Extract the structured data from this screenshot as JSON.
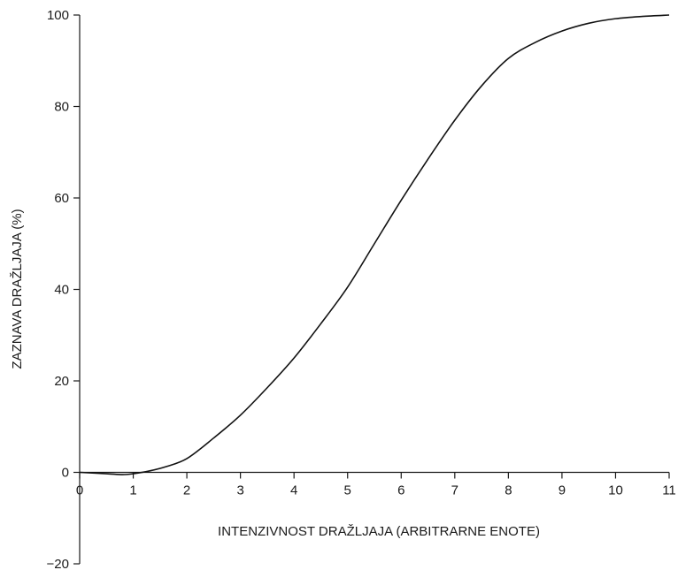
{
  "chart_data": {
    "type": "line",
    "title": "",
    "xlabel": "INTENZIVNOST DRAŽLJAJA (ARBITRARNE ENOTE)",
    "ylabel": "ZAZNAVA DRAŽLJAJA (%)",
    "xlim": [
      0,
      11
    ],
    "ylim": [
      -20,
      100
    ],
    "xticks": [
      0,
      1,
      2,
      3,
      4,
      5,
      6,
      7,
      8,
      9,
      10,
      11
    ],
    "yticks": [
      -20,
      0,
      20,
      40,
      60,
      80,
      100
    ],
    "ytick_labels": [
      "−20",
      "0",
      "20",
      "40",
      "60",
      "80",
      "100"
    ],
    "grid": false,
    "legend": "none",
    "series": [
      {
        "x": [
          0,
          0.5,
          0.8,
          1,
          1.3,
          1.6,
          2,
          2.5,
          3,
          3.5,
          4,
          4.5,
          5,
          5.5,
          6,
          6.5,
          7,
          7.5,
          8,
          8.5,
          9,
          9.5,
          10,
          10.5,
          11
        ],
        "y": [
          0,
          -0.3,
          -0.5,
          -0.3,
          0.3,
          1.2,
          3,
          7.5,
          12.5,
          18.5,
          25,
          32.5,
          40.5,
          50,
          59.5,
          68.5,
          77,
          84.5,
          90.5,
          94,
          96.5,
          98.2,
          99.2,
          99.7,
          100
        ]
      }
    ],
    "colors": {
      "line": "#111111",
      "axis": "#1a1a1a"
    }
  }
}
